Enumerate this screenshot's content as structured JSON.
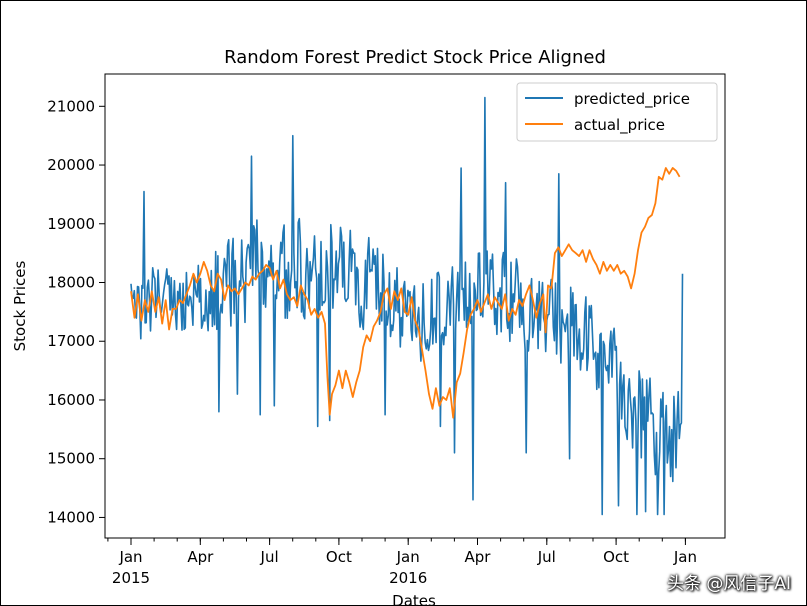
{
  "chart_data": {
    "type": "line",
    "title": "Random Forest Predict Stock Price Aligned",
    "xlabel": "Dates",
    "ylabel": "Stock Prices",
    "x_tick_labels": [
      "Jan",
      "Apr",
      "Jul",
      "Oct",
      "Jan",
      "Apr",
      "Jul",
      "Oct",
      "Jan"
    ],
    "x_year_labels": [
      "2015",
      "2016"
    ],
    "x_range_months": [
      0,
      24.3
    ],
    "y_ticks": [
      14000,
      15000,
      16000,
      17000,
      18000,
      19000,
      20000,
      21000
    ],
    "ylim": [
      13650,
      21550
    ],
    "legend_position": "top-right",
    "series": [
      {
        "name": "predicted_price",
        "color": "#1f77b4",
        "anchors": [
          [
            0.0,
            17800
          ],
          [
            0.5,
            17600
          ],
          [
            1.0,
            17700
          ],
          [
            1.5,
            17900
          ],
          [
            2.0,
            17500
          ],
          [
            2.5,
            17600
          ],
          [
            3.0,
            17800
          ],
          [
            3.5,
            17900
          ],
          [
            4.0,
            17800
          ],
          [
            4.5,
            18000
          ],
          [
            5.0,
            18100
          ],
          [
            5.5,
            18300
          ],
          [
            6.0,
            18300
          ],
          [
            6.5,
            18100
          ],
          [
            7.0,
            18200
          ],
          [
            7.5,
            18300
          ],
          [
            8.0,
            18300
          ],
          [
            8.5,
            18200
          ],
          [
            9.0,
            18300
          ],
          [
            9.5,
            18200
          ],
          [
            10.0,
            18000
          ],
          [
            10.5,
            18000
          ],
          [
            11.0,
            17800
          ],
          [
            11.5,
            17600
          ],
          [
            12.0,
            17500
          ],
          [
            12.5,
            17300
          ],
          [
            13.0,
            17400
          ],
          [
            13.5,
            17600
          ],
          [
            14.0,
            17600
          ],
          [
            14.5,
            17700
          ],
          [
            15.0,
            17800
          ],
          [
            15.5,
            17900
          ],
          [
            16.0,
            17800
          ],
          [
            16.5,
            17700
          ],
          [
            17.0,
            17600
          ],
          [
            17.5,
            17500
          ],
          [
            18.0,
            17400
          ],
          [
            18.5,
            17300
          ],
          [
            19.0,
            17200
          ],
          [
            19.5,
            17000
          ],
          [
            20.0,
            16900
          ],
          [
            20.5,
            16700
          ],
          [
            21.0,
            16400
          ],
          [
            21.5,
            16100
          ],
          [
            22.0,
            15800
          ],
          [
            22.5,
            15600
          ],
          [
            23.0,
            15500
          ],
          [
            23.5,
            15400
          ],
          [
            23.9,
            15600
          ]
        ],
        "amplitude": [
          [
            0,
            500
          ],
          [
            2,
            550
          ],
          [
            5,
            700
          ],
          [
            8,
            750
          ],
          [
            11,
            600
          ],
          [
            13,
            700
          ],
          [
            15,
            650
          ],
          [
            18,
            650
          ],
          [
            20,
            650
          ],
          [
            21,
            700
          ],
          [
            22,
            700
          ],
          [
            24,
            700
          ]
        ],
        "spikes": [
          [
            0.55,
            19550
          ],
          [
            3.8,
            15800
          ],
          [
            4.6,
            16100
          ],
          [
            5.2,
            20150
          ],
          [
            5.6,
            15750
          ],
          [
            6.2,
            15900
          ],
          [
            7.0,
            20500
          ],
          [
            8.1,
            15550
          ],
          [
            8.6,
            15650
          ],
          [
            11.0,
            15750
          ],
          [
            13.4,
            15550
          ],
          [
            14.0,
            15100
          ],
          [
            14.3,
            19950
          ],
          [
            14.8,
            14300
          ],
          [
            15.1,
            18500
          ],
          [
            15.3,
            21150
          ],
          [
            16.2,
            19700
          ],
          [
            17.1,
            19600
          ],
          [
            17.1,
            15100
          ],
          [
            18.5,
            19850
          ],
          [
            19.0,
            15000
          ],
          [
            20.4,
            14050
          ],
          [
            21.1,
            14200
          ],
          [
            21.9,
            14050
          ],
          [
            22.3,
            14100
          ],
          [
            22.8,
            14050
          ],
          [
            23.1,
            14050
          ],
          [
            23.9,
            18150
          ]
        ]
      },
      {
        "name": "actual_price",
        "color": "#ff7f0e",
        "points": [
          [
            0.0,
            17850
          ],
          [
            0.15,
            17400
          ],
          [
            0.3,
            17800
          ],
          [
            0.45,
            17350
          ],
          [
            0.6,
            17700
          ],
          [
            0.75,
            17500
          ],
          [
            0.9,
            17850
          ],
          [
            1.05,
            17500
          ],
          [
            1.2,
            17750
          ],
          [
            1.35,
            17300
          ],
          [
            1.5,
            17700
          ],
          [
            1.65,
            17200
          ],
          [
            1.8,
            17550
          ],
          [
            1.95,
            17550
          ],
          [
            2.1,
            17700
          ],
          [
            2.25,
            17650
          ],
          [
            2.4,
            17800
          ],
          [
            2.55,
            17950
          ],
          [
            2.7,
            18150
          ],
          [
            2.85,
            18000
          ],
          [
            3.0,
            18150
          ],
          [
            3.15,
            18350
          ],
          [
            3.3,
            18200
          ],
          [
            3.45,
            17950
          ],
          [
            3.6,
            17850
          ],
          [
            3.75,
            18150
          ],
          [
            3.9,
            18050
          ],
          [
            4.05,
            17700
          ],
          [
            4.2,
            17950
          ],
          [
            4.35,
            17850
          ],
          [
            4.5,
            17900
          ],
          [
            4.65,
            17800
          ],
          [
            4.8,
            17900
          ],
          [
            4.95,
            18000
          ],
          [
            5.1,
            17950
          ],
          [
            5.25,
            18100
          ],
          [
            5.4,
            18050
          ],
          [
            5.55,
            18150
          ],
          [
            5.7,
            18200
          ],
          [
            5.85,
            18300
          ],
          [
            6.0,
            18250
          ],
          [
            6.15,
            18050
          ],
          [
            6.3,
            18200
          ],
          [
            6.45,
            17900
          ],
          [
            6.6,
            18050
          ],
          [
            6.75,
            17800
          ],
          [
            6.9,
            17700
          ],
          [
            7.05,
            17750
          ],
          [
            7.2,
            17600
          ],
          [
            7.35,
            17950
          ],
          [
            7.5,
            17800
          ],
          [
            7.65,
            17700
          ],
          [
            7.8,
            17450
          ],
          [
            7.95,
            17550
          ],
          [
            8.1,
            17400
          ],
          [
            8.25,
            17500
          ],
          [
            8.4,
            17300
          ],
          [
            8.5,
            16400
          ],
          [
            8.6,
            15750
          ],
          [
            8.7,
            16100
          ],
          [
            8.85,
            16250
          ],
          [
            9.0,
            16500
          ],
          [
            9.15,
            16200
          ],
          [
            9.3,
            16500
          ],
          [
            9.45,
            16300
          ],
          [
            9.6,
            16050
          ],
          [
            9.75,
            16300
          ],
          [
            9.9,
            16500
          ],
          [
            10.05,
            16900
          ],
          [
            10.2,
            17100
          ],
          [
            10.35,
            17000
          ],
          [
            10.5,
            17250
          ],
          [
            10.65,
            17350
          ],
          [
            10.8,
            17500
          ],
          [
            10.95,
            17800
          ],
          [
            11.1,
            17900
          ],
          [
            11.25,
            17550
          ],
          [
            11.4,
            17850
          ],
          [
            11.55,
            17700
          ],
          [
            11.7,
            17900
          ],
          [
            11.85,
            17500
          ],
          [
            12.0,
            17450
          ],
          [
            12.15,
            17750
          ],
          [
            12.3,
            17350
          ],
          [
            12.45,
            17200
          ],
          [
            12.6,
            16850
          ],
          [
            12.75,
            16500
          ],
          [
            12.9,
            16100
          ],
          [
            13.05,
            15850
          ],
          [
            13.2,
            16200
          ],
          [
            13.35,
            15900
          ],
          [
            13.5,
            16050
          ],
          [
            13.65,
            16000
          ],
          [
            13.8,
            16200
          ],
          [
            13.95,
            15700
          ],
          [
            14.1,
            16300
          ],
          [
            14.25,
            16450
          ],
          [
            14.4,
            16800
          ],
          [
            14.55,
            17200
          ],
          [
            14.7,
            17450
          ],
          [
            14.85,
            17550
          ],
          [
            15.0,
            17700
          ],
          [
            15.15,
            17500
          ],
          [
            15.3,
            17650
          ],
          [
            15.45,
            17800
          ],
          [
            15.6,
            17550
          ],
          [
            15.75,
            17750
          ],
          [
            15.9,
            17650
          ],
          [
            16.05,
            17550
          ],
          [
            16.2,
            17800
          ],
          [
            16.35,
            17350
          ],
          [
            16.5,
            17550
          ],
          [
            16.65,
            17450
          ],
          [
            16.8,
            17700
          ],
          [
            16.95,
            17600
          ],
          [
            17.1,
            17800
          ],
          [
            17.25,
            17950
          ],
          [
            17.4,
            17700
          ],
          [
            17.55,
            17400
          ],
          [
            17.7,
            17650
          ],
          [
            17.85,
            17800
          ],
          [
            17.95,
            17150
          ],
          [
            18.05,
            17950
          ],
          [
            18.2,
            17900
          ],
          [
            18.35,
            18500
          ],
          [
            18.5,
            18600
          ],
          [
            18.65,
            18450
          ],
          [
            18.8,
            18550
          ],
          [
            18.95,
            18650
          ],
          [
            19.1,
            18550
          ],
          [
            19.25,
            18500
          ],
          [
            19.4,
            18450
          ],
          [
            19.55,
            18550
          ],
          [
            19.7,
            18350
          ],
          [
            19.85,
            18550
          ],
          [
            20.0,
            18400
          ],
          [
            20.15,
            18300
          ],
          [
            20.3,
            18150
          ],
          [
            20.45,
            18350
          ],
          [
            20.6,
            18200
          ],
          [
            20.75,
            18300
          ],
          [
            20.9,
            18200
          ],
          [
            21.05,
            18300
          ],
          [
            21.2,
            18150
          ],
          [
            21.35,
            18200
          ],
          [
            21.5,
            18100
          ],
          [
            21.65,
            17900
          ],
          [
            21.8,
            18150
          ],
          [
            21.95,
            18550
          ],
          [
            22.1,
            18850
          ],
          [
            22.25,
            18950
          ],
          [
            22.4,
            19100
          ],
          [
            22.55,
            19150
          ],
          [
            22.7,
            19350
          ],
          [
            22.85,
            19800
          ],
          [
            23.0,
            19750
          ],
          [
            23.15,
            19950
          ],
          [
            23.3,
            19850
          ],
          [
            23.45,
            19950
          ],
          [
            23.6,
            19900
          ],
          [
            23.75,
            19800
          ]
        ]
      }
    ]
  },
  "watermark": "头条 @风信子AI"
}
